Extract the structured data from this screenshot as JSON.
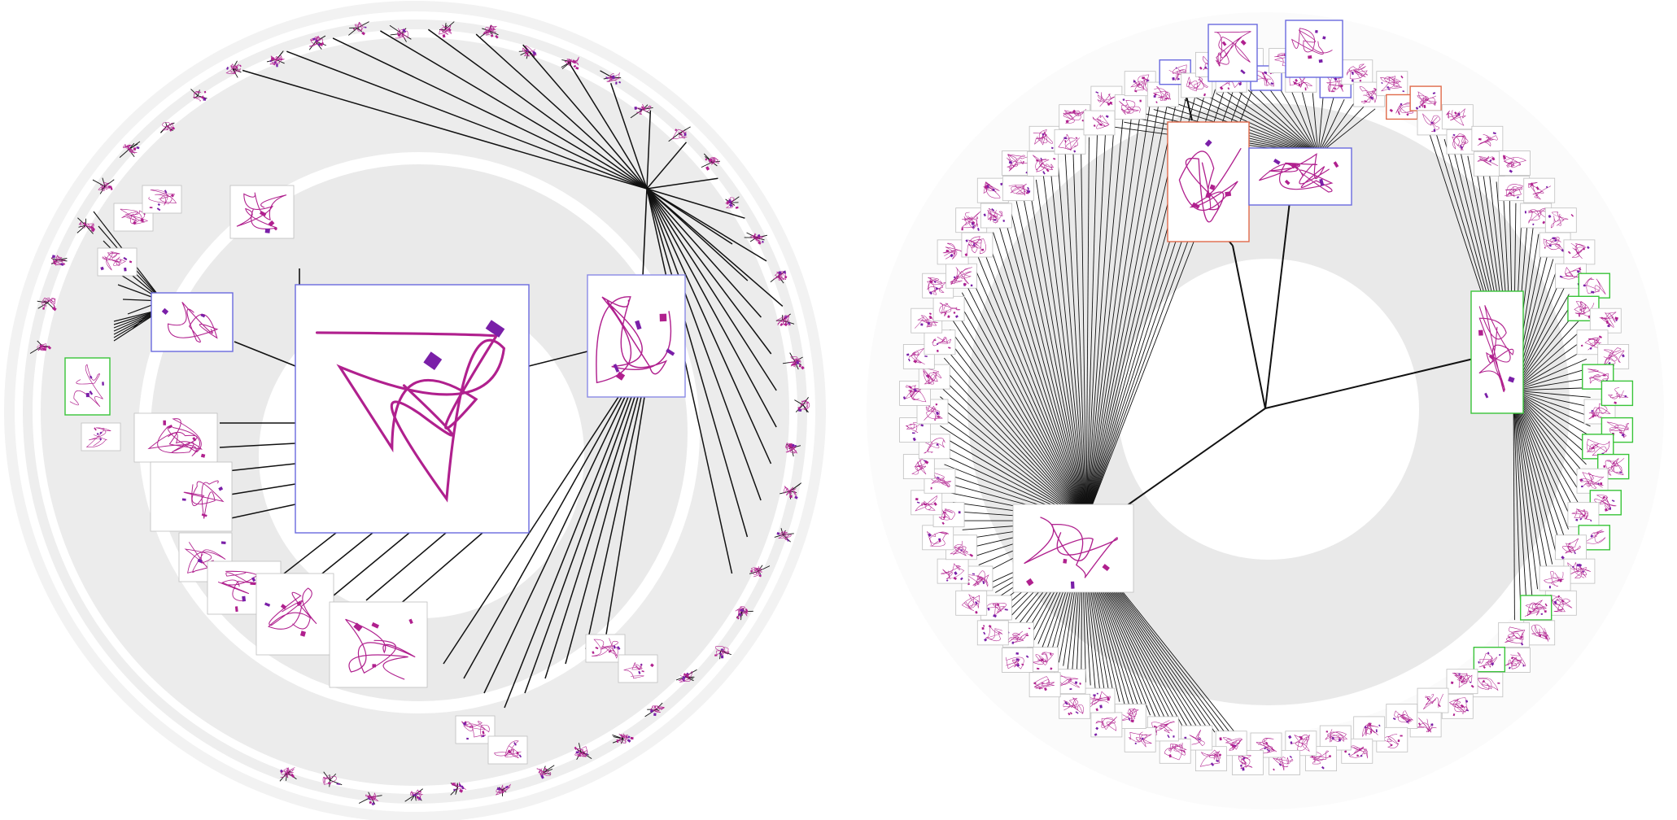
{
  "figure": {
    "panels": [
      {
        "name": "left-radial-tree",
        "hub_count": 3,
        "border_colors": [
          "#6a5acd",
          "#7b68ee",
          "#4caf50"
        ]
      },
      {
        "name": "right-radial-tree",
        "hub_count": 4,
        "border_colors": [
          "#e07050",
          "#6a7fd8",
          "#3fbf3f"
        ]
      }
    ],
    "colors": {
      "ring_light": "#efefef",
      "ring_mid": "#e6e6e6",
      "edge": "#111111",
      "protein_main": "#b0208e",
      "protein_alt": "#7a1fa8",
      "thumb_border_blue": "#6a6adf",
      "thumb_border_green": "#39c439",
      "thumb_border_red": "#e06a4a"
    },
    "icons": [
      "protein-structure-thumbnail"
    ]
  }
}
